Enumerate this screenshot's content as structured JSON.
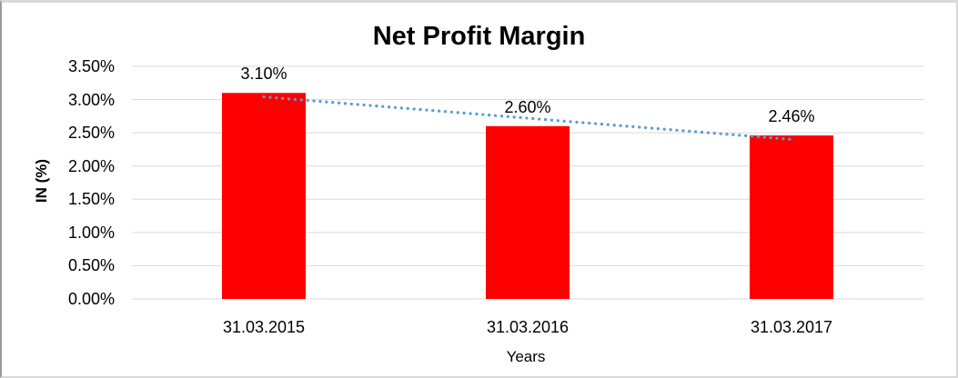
{
  "chart": {
    "title": "Net Profit Margin",
    "x_axis_title": "Years",
    "y_axis_title": "IN (%)"
  },
  "chart_data": {
    "type": "bar",
    "title": "Net Profit Margin",
    "xlabel": "Years",
    "ylabel": "IN (%)",
    "categories": [
      "31.03.2015",
      "31.03.2016",
      "31.03.2017"
    ],
    "values": [
      3.1,
      2.6,
      2.46
    ],
    "data_labels": [
      "3.10%",
      "2.60%",
      "2.46%"
    ],
    "ylim": [
      0,
      3.5
    ],
    "ytick_labels": [
      "0.00%",
      "0.50%",
      "1.00%",
      "1.50%",
      "2.00%",
      "2.50%",
      "3.00%",
      "3.50%"
    ],
    "grid": true,
    "legend": "none",
    "trendline": {
      "type": "linear",
      "style": "dotted"
    },
    "colors": {
      "bar": "#FF0000",
      "trendline": "#5B9BD5",
      "gridline": "#D9D9D9",
      "text": "#000000",
      "background": "#FFFFFF"
    }
  }
}
